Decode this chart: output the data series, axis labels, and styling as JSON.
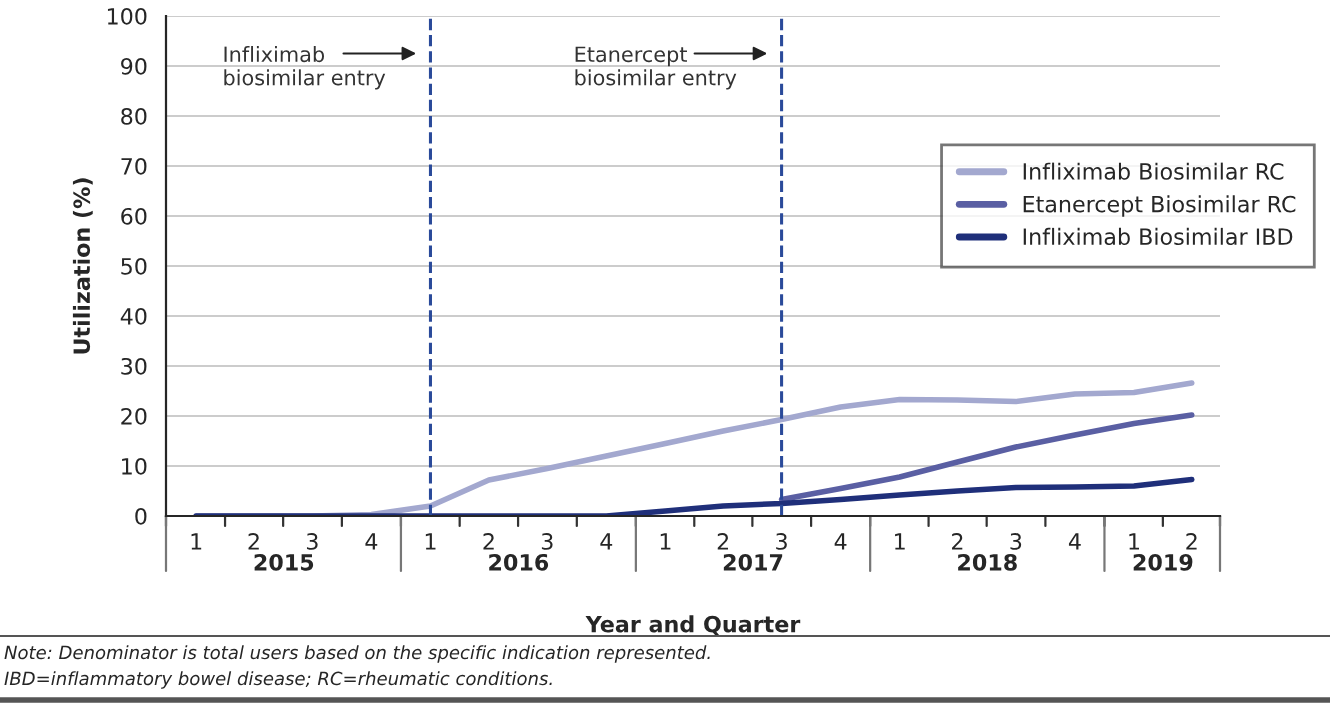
{
  "chart_data": {
    "type": "line",
    "xlabel": "Year and Quarter",
    "ylabel": "Utilization (%)",
    "x": [
      "2015-01",
      "2015-04",
      "2015-07",
      "2015-10",
      "2016-01",
      "2016-04",
      "2016-07",
      "2016-10",
      "2017-01",
      "2017-04",
      "2017-07",
      "2017-10",
      "2018-01",
      "2018-04",
      "2018-07",
      "2018-10",
      "2019-01",
      "2019-04"
    ],
    "xlim": [
      "2014-11-15",
      "2019-05-15"
    ],
    "xticks": [
      {
        "value": "2015-01",
        "label": "1"
      },
      {
        "value": "2015-04",
        "label": "2"
      },
      {
        "value": "2015-07",
        "label": "3"
      },
      {
        "value": "2015-10",
        "label": "4"
      },
      {
        "value": "2016-01",
        "label": "1"
      },
      {
        "value": "2016-04",
        "label": "2"
      },
      {
        "value": "2016-07",
        "label": "3"
      },
      {
        "value": "2016-10",
        "label": "4"
      },
      {
        "value": "2017-01",
        "label": "1"
      },
      {
        "value": "2017-04",
        "label": "2"
      },
      {
        "value": "2017-07",
        "label": "3"
      },
      {
        "value": "2017-10",
        "label": "4"
      },
      {
        "value": "2018-01",
        "label": "1"
      },
      {
        "value": "2018-04",
        "label": "2"
      },
      {
        "value": "2018-07",
        "label": "3"
      },
      {
        "value": "2018-10",
        "label": "4"
      },
      {
        "value": "2019-01",
        "label": "1"
      },
      {
        "value": "2019-04",
        "label": "2"
      }
    ],
    "series": [
      {
        "name": "Infliximab Biosimilar RC",
        "color": "#a3a8cf",
        "values": [
          0,
          0,
          0,
          0.3,
          2,
          7.2,
          9.5,
          12,
          14.5,
          17,
          19.3,
          21.8,
          23.3,
          23.2,
          22.9,
          24.4,
          24.7,
          26.6
        ]
      },
      {
        "name": "Etanercept Biosimilar RC",
        "color": "#5a5fa3",
        "values": [
          null,
          null,
          null,
          null,
          null,
          null,
          null,
          null,
          null,
          null,
          3.3,
          5.5,
          7.8,
          10.8,
          13.8,
          16.2,
          18.5,
          20.2
        ]
      },
      {
        "name": "Infliximab Biosimilar IBD",
        "color": "#1f2f7a",
        "values": [
          0,
          0,
          0,
          0,
          0,
          0,
          0,
          0,
          1.0,
          2.0,
          2.5,
          3.3,
          4.2,
          5.0,
          5.7,
          5.8,
          6.0,
          7.3
        ]
      }
    ],
    "ylim": [
      0,
      100
    ],
    "yticks": [
      0,
      10,
      20,
      30,
      40,
      50,
      60,
      70,
      80,
      90,
      100
    ],
    "grid": "y",
    "legend": "right",
    "marker": "none",
    "line_style": "solid",
    "ref_lines": [
      {
        "axis": "x",
        "value": "2016-01",
        "label": "Infliximab\nbiosimilar entry",
        "color": "#2a4a9a",
        "line_style": "dashed"
      },
      {
        "axis": "x",
        "value": "2017-07",
        "label": "Etanercept\nbiosimilar entry",
        "color": "#2a4a9a",
        "line_style": "dashed"
      }
    ],
    "annotations": [
      "2015",
      "2016",
      "2017",
      "2018",
      "2019",
      "Note: Denominator is total users based on the specific indication represented.",
      "IBD=inflammatory bowel disease; RC=rheumatic conditions."
    ]
  }
}
